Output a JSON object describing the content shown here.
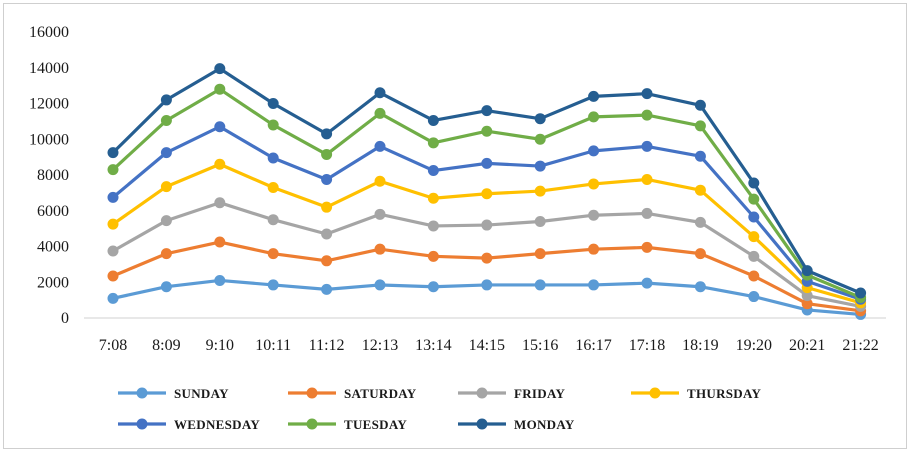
{
  "chart_data": {
    "type": "line",
    "categories": [
      "7:08",
      "8:09",
      "9:10",
      "10:11",
      "11:12",
      "12:13",
      "13:14",
      "14:15",
      "15:16",
      "16:17",
      "17:18",
      "18:19",
      "19:20",
      "20:21",
      "21:22"
    ],
    "ylim": [
      0,
      16000
    ],
    "yticks": [
      "0",
      "2000",
      "4000",
      "6000",
      "8000",
      "10000",
      "12000",
      "14000",
      "16000"
    ],
    "grid": false,
    "legend_position": "bottom",
    "series": [
      {
        "name": "SUNDAY",
        "color": "#5B9BD5",
        "values": [
          1100,
          1750,
          2100,
          1850,
          1600,
          1850,
          1750,
          1850,
          1850,
          1850,
          1950,
          1750,
          1200,
          450,
          200
        ]
      },
      {
        "name": "SATURDAY",
        "color": "#ED7D31",
        "values": [
          2350,
          3600,
          4250,
          3600,
          3200,
          3850,
          3450,
          3350,
          3600,
          3850,
          3950,
          3600,
          2350,
          800,
          400
        ]
      },
      {
        "name": "FRIDAY",
        "color": "#A5A5A5",
        "values": [
          3750,
          5450,
          6450,
          5500,
          4700,
          5800,
          5150,
          5200,
          5400,
          5750,
          5850,
          5350,
          3450,
          1250,
          650
        ]
      },
      {
        "name": "THURSDAY",
        "color": "#FFC000",
        "values": [
          5250,
          7350,
          8600,
          7300,
          6200,
          7650,
          6700,
          6950,
          7100,
          7500,
          7750,
          7150,
          4550,
          1700,
          850
        ]
      },
      {
        "name": "WEDNESDAY",
        "color": "#4472C4",
        "values": [
          6750,
          9250,
          10700,
          8950,
          7750,
          9600,
          8250,
          8650,
          8500,
          9350,
          9600,
          9050,
          5650,
          2050,
          1050
        ]
      },
      {
        "name": "TUESDAY",
        "color": "#70AD47",
        "values": [
          8300,
          11050,
          12800,
          10800,
          9150,
          11450,
          9800,
          10450,
          10000,
          11250,
          11350,
          10750,
          6650,
          2400,
          1150
        ]
      },
      {
        "name": "MONDAY",
        "color": "#255E91",
        "values": [
          9250,
          12200,
          13950,
          12000,
          10300,
          12600,
          11050,
          11600,
          11150,
          12400,
          12550,
          11900,
          7550,
          2650,
          1400
        ]
      }
    ]
  }
}
